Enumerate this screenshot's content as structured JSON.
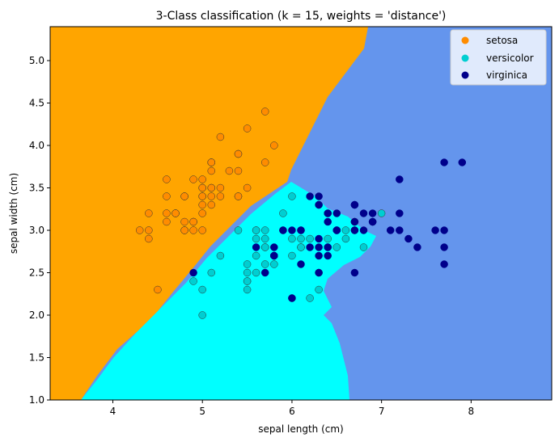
{
  "chart_data": {
    "type": "scatter",
    "title": "3-Class classification (k = 15, weights = 'distance')",
    "xlabel": "sepal length (cm)",
    "ylabel": "sepal width (cm)",
    "xlim": [
      3.3,
      8.9
    ],
    "ylim": [
      1.0,
      5.4
    ],
    "xticks": [
      4,
      5,
      6,
      7,
      8
    ],
    "yticks": [
      1.0,
      1.5,
      2.0,
      2.5,
      3.0,
      3.5,
      4.0,
      4.5,
      5.0
    ],
    "xtick_labels": [
      "4",
      "5",
      "6",
      "7",
      "8"
    ],
    "ytick_labels": [
      "1.0",
      "1.5",
      "2.0",
      "2.5",
      "3.0",
      "3.5",
      "4.0",
      "4.5",
      "5.0"
    ],
    "grid": false,
    "legend_position": "top-right",
    "decision_regions": [
      {
        "class": "setosa",
        "color": "#FFA500"
      },
      {
        "class": "versicolor",
        "color": "#00FFFF"
      },
      {
        "class": "virginica",
        "color": "#6495ED"
      }
    ],
    "series": [
      {
        "name": "setosa",
        "color": "#FF8C00",
        "points": [
          [
            5.1,
            3.5
          ],
          [
            4.9,
            3.0
          ],
          [
            4.7,
            3.2
          ],
          [
            4.6,
            3.1
          ],
          [
            5.0,
            3.6
          ],
          [
            5.4,
            3.9
          ],
          [
            4.6,
            3.4
          ],
          [
            5.0,
            3.4
          ],
          [
            4.4,
            2.9
          ],
          [
            4.9,
            3.1
          ],
          [
            5.4,
            3.7
          ],
          [
            4.8,
            3.4
          ],
          [
            4.8,
            3.0
          ],
          [
            4.3,
            3.0
          ],
          [
            5.8,
            4.0
          ],
          [
            5.7,
            4.4
          ],
          [
            5.4,
            3.9
          ],
          [
            5.1,
            3.5
          ],
          [
            5.7,
            3.8
          ],
          [
            5.1,
            3.8
          ],
          [
            5.4,
            3.4
          ],
          [
            5.1,
            3.7
          ],
          [
            4.6,
            3.6
          ],
          [
            5.1,
            3.3
          ],
          [
            4.8,
            3.4
          ],
          [
            5.0,
            3.0
          ],
          [
            5.0,
            3.4
          ],
          [
            5.2,
            3.5
          ],
          [
            5.2,
            3.4
          ],
          [
            4.7,
            3.2
          ],
          [
            4.8,
            3.1
          ],
          [
            5.4,
            3.4
          ],
          [
            5.2,
            4.1
          ],
          [
            5.5,
            4.2
          ],
          [
            4.9,
            3.1
          ],
          [
            5.0,
            3.2
          ],
          [
            5.5,
            3.5
          ],
          [
            4.9,
            3.6
          ],
          [
            4.4,
            3.0
          ],
          [
            5.1,
            3.4
          ],
          [
            5.0,
            3.5
          ],
          [
            4.5,
            2.3
          ],
          [
            4.4,
            3.2
          ],
          [
            5.0,
            3.5
          ],
          [
            5.1,
            3.8
          ],
          [
            4.8,
            3.0
          ],
          [
            5.1,
            3.8
          ],
          [
            4.6,
            3.2
          ],
          [
            5.3,
            3.7
          ],
          [
            5.0,
            3.3
          ]
        ]
      },
      {
        "name": "versicolor",
        "color": "#00CED1",
        "points": [
          [
            7.0,
            3.2
          ],
          [
            6.4,
            3.2
          ],
          [
            6.9,
            3.1
          ],
          [
            5.5,
            2.3
          ],
          [
            6.5,
            2.8
          ],
          [
            5.7,
            2.8
          ],
          [
            6.3,
            3.3
          ],
          [
            4.9,
            2.4
          ],
          [
            6.6,
            2.9
          ],
          [
            5.2,
            2.7
          ],
          [
            5.0,
            2.0
          ],
          [
            5.9,
            3.0
          ],
          [
            6.0,
            2.2
          ],
          [
            6.1,
            2.9
          ],
          [
            5.6,
            2.9
          ],
          [
            6.7,
            3.1
          ],
          [
            5.6,
            3.0
          ],
          [
            5.8,
            2.7
          ],
          [
            6.2,
            2.2
          ],
          [
            5.6,
            2.5
          ],
          [
            5.9,
            3.2
          ],
          [
            6.1,
            2.8
          ],
          [
            6.3,
            2.5
          ],
          [
            6.1,
            2.8
          ],
          [
            6.4,
            2.9
          ],
          [
            6.6,
            3.0
          ],
          [
            6.8,
            2.8
          ],
          [
            6.7,
            3.0
          ],
          [
            6.0,
            2.9
          ],
          [
            5.7,
            2.6
          ],
          [
            5.5,
            2.4
          ],
          [
            5.5,
            2.4
          ],
          [
            5.8,
            2.7
          ],
          [
            6.0,
            2.7
          ],
          [
            5.4,
            3.0
          ],
          [
            6.0,
            3.4
          ],
          [
            6.7,
            3.1
          ],
          [
            6.3,
            2.3
          ],
          [
            5.6,
            3.0
          ],
          [
            5.5,
            2.5
          ],
          [
            5.5,
            2.6
          ],
          [
            6.1,
            3.0
          ],
          [
            5.8,
            2.6
          ],
          [
            5.0,
            2.3
          ],
          [
            5.6,
            2.7
          ],
          [
            5.7,
            3.0
          ],
          [
            5.7,
            2.9
          ],
          [
            6.2,
            2.9
          ],
          [
            5.1,
            2.5
          ],
          [
            5.7,
            2.8
          ]
        ]
      },
      {
        "name": "virginica",
        "color": "#00008B",
        "points": [
          [
            6.3,
            3.3
          ],
          [
            5.8,
            2.7
          ],
          [
            7.1,
            3.0
          ],
          [
            6.3,
            2.9
          ],
          [
            6.5,
            3.0
          ],
          [
            7.6,
            3.0
          ],
          [
            4.9,
            2.5
          ],
          [
            7.3,
            2.9
          ],
          [
            6.7,
            2.5
          ],
          [
            7.2,
            3.6
          ],
          [
            6.5,
            3.2
          ],
          [
            6.4,
            2.7
          ],
          [
            6.8,
            3.0
          ],
          [
            5.7,
            2.5
          ],
          [
            5.8,
            2.8
          ],
          [
            6.4,
            3.2
          ],
          [
            6.5,
            3.0
          ],
          [
            7.7,
            3.8
          ],
          [
            7.7,
            2.6
          ],
          [
            6.0,
            2.2
          ],
          [
            6.9,
            3.2
          ],
          [
            5.6,
            2.8
          ],
          [
            7.7,
            2.8
          ],
          [
            6.3,
            2.7
          ],
          [
            6.7,
            3.3
          ],
          [
            7.2,
            3.2
          ],
          [
            6.2,
            2.8
          ],
          [
            6.1,
            3.0
          ],
          [
            6.4,
            2.8
          ],
          [
            7.2,
            3.0
          ],
          [
            7.4,
            2.8
          ],
          [
            7.9,
            3.8
          ],
          [
            6.4,
            2.8
          ],
          [
            6.3,
            2.8
          ],
          [
            6.1,
            2.6
          ],
          [
            7.7,
            3.0
          ],
          [
            6.3,
            3.4
          ],
          [
            6.4,
            3.1
          ],
          [
            6.0,
            3.0
          ],
          [
            6.9,
            3.1
          ],
          [
            6.7,
            3.1
          ],
          [
            6.9,
            3.1
          ],
          [
            5.8,
            2.7
          ],
          [
            6.8,
            3.2
          ],
          [
            6.7,
            3.3
          ],
          [
            6.7,
            3.0
          ],
          [
            6.3,
            2.5
          ],
          [
            6.5,
            3.0
          ],
          [
            6.2,
            3.4
          ],
          [
            5.9,
            3.0
          ]
        ]
      }
    ]
  }
}
